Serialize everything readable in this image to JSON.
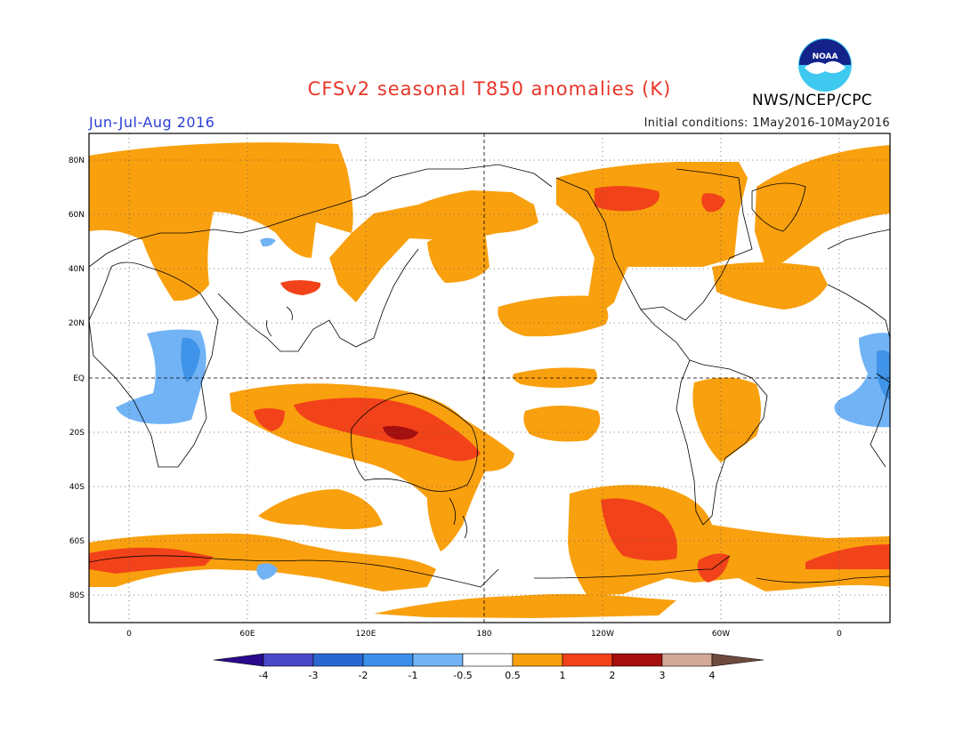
{
  "header": {
    "title": "CFSv2 seasonal T850 anomalies (K)",
    "season": "Jun-Jul-Aug 2016",
    "initial_conditions": "Initial conditions: 1May2016-10May2016",
    "agency": "NWS/NCEP/CPC",
    "logo_text": "NOAA"
  },
  "map": {
    "variable": "T850 anomaly",
    "units": "K",
    "lon_range": [
      -20,
      340
    ],
    "lat_range": [
      -90,
      90
    ],
    "lat_labels": [
      "80N",
      "60N",
      "40N",
      "20N",
      "EQ",
      "20S",
      "40S",
      "60S",
      "80S"
    ],
    "lon_labels": [
      "0",
      "60E",
      "120E",
      "180",
      "120W",
      "60W",
      "0"
    ],
    "colors": {
      "land_outline": "#000000",
      "grid": "#555555",
      "warm_05_1": "#f9a00e",
      "warm_1_2": "#f2421a",
      "warm_2_3": "#a50f0f",
      "cool_05_1": "#71b3f5",
      "cool_1_2": "#3f93e8"
    }
  },
  "colorbar": {
    "labels": [
      "-4",
      "-3",
      "-2",
      "-1",
      "-0.5",
      "0.5",
      "1",
      "2",
      "3",
      "4"
    ],
    "colors": [
      "#2a0a8c",
      "#4a48c9",
      "#2a67d2",
      "#3c8eea",
      "#71b3f5",
      "#ffffff",
      "#f9a00e",
      "#f2421a",
      "#a50f0f",
      "#d2a896",
      "#6e4a3e"
    ]
  }
}
